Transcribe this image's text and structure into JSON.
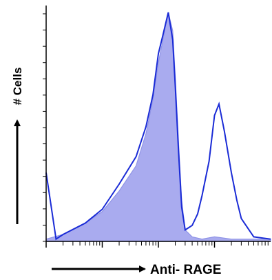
{
  "chart_data": {
    "type": "area",
    "title": "",
    "xlabel": "Anti- RAGE",
    "ylabel": "# Cells",
    "x_scale": "log",
    "xlim": [
      1,
      10000
    ],
    "ylim": [
      0,
      100
    ],
    "y_ticks_labeled": false,
    "grid": false,
    "legend": "none",
    "series": [
      {
        "style": "filled",
        "color": "#a9abef",
        "x": [
          1,
          2,
          5,
          10,
          20,
          40,
          60,
          80,
          100,
          120,
          150,
          180,
          200,
          230,
          260,
          300,
          400,
          600,
          1000,
          2000,
          5000,
          10000
        ],
        "y": [
          1,
          3,
          8,
          13,
          22,
          33,
          47,
          62,
          78,
          88,
          100,
          92,
          72,
          42,
          18,
          5,
          2,
          1,
          2,
          1,
          1,
          1
        ]
      },
      {
        "style": "outline",
        "color": "#1a2bd6",
        "x": [
          1,
          1.5,
          2,
          5,
          10,
          20,
          40,
          60,
          80,
          100,
          120,
          150,
          180,
          200,
          230,
          260,
          300,
          400,
          500,
          600,
          800,
          1000,
          1200,
          1500,
          2000,
          2500,
          3000,
          5000,
          10000
        ],
        "y": [
          30,
          1,
          3,
          8,
          14,
          25,
          37,
          50,
          64,
          82,
          90,
          100,
          88,
          68,
          38,
          15,
          5,
          7,
          12,
          20,
          35,
          55,
          60,
          48,
          30,
          18,
          10,
          2,
          1
        ]
      }
    ]
  }
}
